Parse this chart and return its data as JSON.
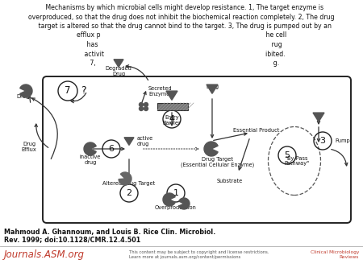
{
  "caption_line1": "Mahmoud A. Ghannoum, and Louis B. Rice Clin. Microbiol.",
  "caption_line2": "Rev. 1999; doi:10.1128/CMR.12.4.501",
  "journal_text": "Journals.ASM.org",
  "license_text": "This content may be subject to copyright and license restrictions.\nLearn more at journals.asm.org/content/permissions",
  "journal_right": "Clinical Microbiology\nReviews",
  "bg_color": "#ffffff",
  "title_lines": [
    "   Mechanisms by which microbial cells might develop resistance. 1, The target enzyme is",
    "overproduced, so that the drug does not inhibit the biochemical reaction completely. 2, The drug",
    "   target is altered so that the drug cannot bind to the target. 3, The drug is pumped out by an",
    "efflux p                                                                                  he cell",
    "   has                                                                                      rug",
    "   activit                                                                                ibited.",
    "   7,                                                                                        g."
  ],
  "small_fs": 4.8,
  "title_fs": 5.6
}
